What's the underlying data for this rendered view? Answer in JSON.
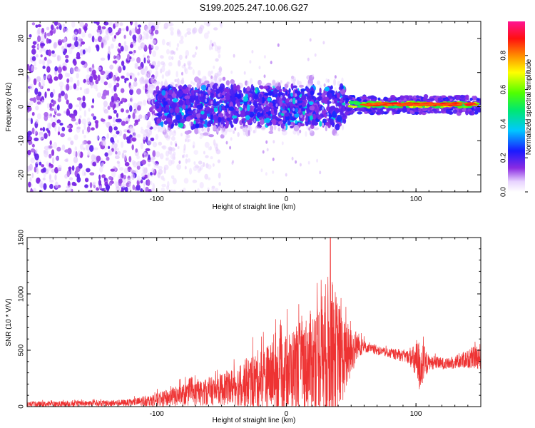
{
  "figure_title": "S199.2025.247.10.06.G27",
  "colors": {
    "snr_line": "#ee3333",
    "axis": "#000000",
    "background": "#ffffff"
  },
  "chart_data": [
    {
      "type": "heatmap",
      "name": "spectrogram",
      "xlabel": "Height of straight line (km)",
      "ylabel": "Frequency (Hz)",
      "xlim": [
        -200,
        150
      ],
      "ylim": [
        -25,
        25
      ],
      "xticks": [
        -100,
        0,
        100
      ],
      "xtick_labels": [
        "-100",
        "0",
        "100"
      ],
      "yticks": [
        -20,
        -10,
        0,
        10,
        20
      ],
      "ytick_labels": [
        "-20",
        "-10",
        "0",
        "10",
        "20"
      ],
      "colorbar": {
        "label": "Normalized spectral amplitude",
        "range": [
          0,
          1
        ],
        "ticks": [
          0,
          0.2,
          0.4,
          0.6,
          0.8
        ],
        "tick_labels": [
          "0.0",
          "0.2",
          "0.4",
          "0.6",
          "0.8"
        ],
        "colormap": "rainbow (white-violet-blue-cyan-green-yellow-red-pink)"
      },
      "regions": [
        {
          "x_range": [
            -200,
            -100
          ],
          "freq_range": [
            -25,
            25
          ],
          "amplitude": "0.05-0.15",
          "note": "broadband noise"
        },
        {
          "x_range": [
            -100,
            45
          ],
          "freq_range": [
            -10,
            10
          ],
          "amplitude": "0.1-0.3",
          "note": "clustered energy near 0 Hz"
        },
        {
          "x_range": [
            45,
            150
          ],
          "freq_range": [
            -2,
            2
          ],
          "amplitude": "0.6-1.0",
          "note": "narrow band at ~0-1 Hz"
        }
      ]
    },
    {
      "type": "line",
      "name": "snr",
      "xlabel": "Height of straight line (km)",
      "ylabel": "SNR (10 * V/V)",
      "xlim": [
        -200,
        150
      ],
      "ylim": [
        0,
        1500
      ],
      "xticks": [
        -100,
        0,
        100
      ],
      "xtick_labels": [
        "-100",
        "0",
        "100"
      ],
      "yticks": [
        0,
        500,
        1000,
        1500
      ],
      "ytick_labels": [
        "0",
        "500",
        "1000",
        "1500"
      ],
      "envelope_points": [
        {
          "x": -200,
          "base": 20,
          "amp": 25
        },
        {
          "x": -160,
          "base": 25,
          "amp": 25
        },
        {
          "x": -120,
          "base": 35,
          "amp": 30
        },
        {
          "x": -100,
          "base": 60,
          "amp": 60
        },
        {
          "x": -80,
          "base": 100,
          "amp": 100
        },
        {
          "x": -60,
          "base": 130,
          "amp": 120
        },
        {
          "x": -40,
          "base": 180,
          "amp": 170
        },
        {
          "x": -20,
          "base": 240,
          "amp": 280
        },
        {
          "x": 0,
          "base": 300,
          "amp": 350
        },
        {
          "x": 15,
          "base": 380,
          "amp": 420
        },
        {
          "x": 25,
          "base": 450,
          "amp": 500
        },
        {
          "x": 33,
          "base": 500,
          "amp": 700
        },
        {
          "x": 38,
          "base": 480,
          "amp": 550
        },
        {
          "x": 45,
          "base": 420,
          "amp": 350
        },
        {
          "x": 55,
          "base": 550,
          "amp": 120
        },
        {
          "x": 62,
          "base": 520,
          "amp": 40
        },
        {
          "x": 80,
          "base": 470,
          "amp": 40
        },
        {
          "x": 95,
          "base": 440,
          "amp": 60
        },
        {
          "x": 103,
          "base": 360,
          "amp": 250
        },
        {
          "x": 110,
          "base": 390,
          "amp": 60
        },
        {
          "x": 125,
          "base": 380,
          "amp": 50
        },
        {
          "x": 140,
          "base": 420,
          "amp": 80
        },
        {
          "x": 150,
          "base": 450,
          "amp": 120
        }
      ],
      "peak": {
        "x": 34,
        "y": 1500
      }
    }
  ]
}
